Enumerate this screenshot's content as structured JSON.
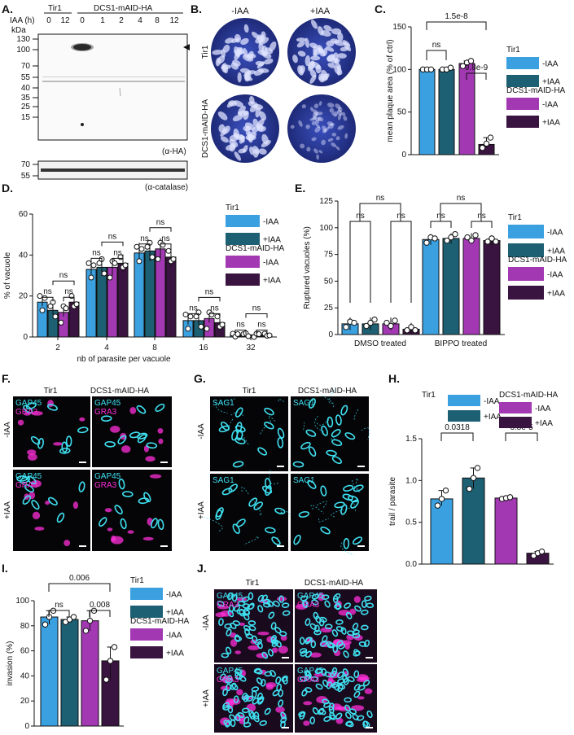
{
  "colors": {
    "c_lightblue": "#3aa0df",
    "c_teal": "#1d5f73",
    "c_magenta": "#a238b2",
    "c_dark": "#3a1440",
    "cyan": "#3fe0f0",
    "magenta_stain": "#ff2fd8",
    "plate_blue": "#2c3d9a"
  },
  "panel_letters": [
    "A.",
    "B.",
    "C.",
    "D.",
    "E.",
    "F.",
    "G.",
    "H.",
    "I.",
    "J."
  ],
  "legend": {
    "group1": "Tir1",
    "group2": "DCS1-mAID-HA",
    "minus": "-IAA",
    "plus": "+IAA"
  },
  "panelA": {
    "iaa_label": "IAA (h)",
    "kda": "kDa",
    "groups": [
      "Tir1",
      "DCS1-mAID-HA"
    ],
    "lanes": [
      "0",
      "12",
      "0",
      "1",
      "2",
      "4",
      "8",
      "12"
    ],
    "markers": [
      "130",
      "100",
      "70",
      "55",
      "40",
      "35",
      "25",
      "15"
    ],
    "markers2": [
      "70",
      "55"
    ],
    "blot1_label": "(α-HA)",
    "blot2_label": "(α-catalase)"
  },
  "panelB": {
    "cols": [
      "-IAA",
      "+IAA"
    ],
    "rows": [
      "Tir1",
      "DCS1-mAID-HA"
    ]
  },
  "chartC": {
    "type": "bar",
    "ylabel": "mean plaque area (% of ctrl)",
    "ylim": [
      0,
      150
    ],
    "yticks": [
      "0",
      "50",
      "100",
      "150"
    ],
    "values": [
      100,
      100,
      107,
      12
    ],
    "points": [
      [
        100,
        100,
        100
      ],
      [
        100,
        100,
        102
      ],
      [
        104,
        108,
        110
      ],
      [
        8,
        13,
        20
      ]
    ],
    "stats": [
      {
        "label": "ns"
      },
      {
        "label": "1.5e-8"
      },
      {
        "label": "9.8e-9"
      }
    ]
  },
  "chartD": {
    "type": "bar",
    "ylabel": "% of vacuole",
    "xlabel": "nb of parasite per vacuole",
    "ylim": [
      0,
      60
    ],
    "yticks": [
      "0",
      "20",
      "40",
      "60"
    ],
    "categories": [
      "2",
      "4",
      "8",
      "16",
      "32"
    ],
    "series": [
      {
        "name": "Tir1 -IAA",
        "values": [
          17,
          33,
          41,
          8,
          1
        ]
      },
      {
        "name": "Tir1 +IAA",
        "values": [
          13,
          34,
          42,
          8,
          1
        ]
      },
      {
        "name": "DCS1-mAID-HA -IAA",
        "values": [
          12,
          34,
          43,
          9,
          1
        ]
      },
      {
        "name": "DCS1-mAID-HA +IAA",
        "values": [
          17,
          36,
          39,
          7,
          1
        ]
      }
    ],
    "ns": "ns"
  },
  "chartE": {
    "type": "bar",
    "ylabel": "Ruptured vacuoles (%)",
    "ylim": [
      0,
      125
    ],
    "yticks": [
      "0",
      "25",
      "50",
      "75",
      "100",
      "125"
    ],
    "categories": [
      "DMSO treated",
      "BIPPO treated"
    ],
    "series": [
      {
        "name": "Tir1 -IAA",
        "values": [
          10,
          89
        ]
      },
      {
        "name": "Tir1 +IAA",
        "values": [
          10,
          90
        ]
      },
      {
        "name": "DCS1-mAID-HA -IAA",
        "values": [
          10,
          90
        ]
      },
      {
        "name": "DCS1-mAID-HA +IAA",
        "values": [
          5,
          88
        ]
      }
    ],
    "ns": "ns"
  },
  "panelF": {
    "cols": [
      "Tir1",
      "DCS1-mAID-HA"
    ],
    "rows": [
      "-IAA",
      "+IAA"
    ],
    "stain1": "GAP45",
    "stain2": "GRA3"
  },
  "panelG": {
    "cols": [
      "Tir1",
      "DCS1-mAID-HA"
    ],
    "rows": [
      "-IAA",
      "+IAA"
    ],
    "stain": "SAG1"
  },
  "chartH": {
    "type": "bar",
    "ylabel": "trail / parasite",
    "ylim": [
      0,
      1.5
    ],
    "yticks": [
      "0.0",
      "0.5",
      "1.0",
      "1.5"
    ],
    "values": [
      0.78,
      1.03,
      0.79,
      0.13
    ],
    "points": [
      [
        0.7,
        0.78,
        0.88
      ],
      [
        0.9,
        1.03,
        1.15
      ],
      [
        0.78,
        0.79,
        0.8
      ],
      [
        0.1,
        0.13,
        0.15
      ]
    ],
    "stats": [
      {
        "label": "0.0318"
      },
      {
        "label": "6.8e-5"
      }
    ]
  },
  "chartI": {
    "type": "bar",
    "ylabel": "invasion (%)",
    "ylim": [
      0,
      100
    ],
    "yticks": [
      "0",
      "20",
      "40",
      "60",
      "80",
      "100"
    ],
    "values": [
      87,
      85,
      84,
      52
    ],
    "points": [
      [
        81,
        87,
        92
      ],
      [
        83,
        85,
        87
      ],
      [
        76,
        84,
        92
      ],
      [
        37,
        52,
        63
      ]
    ],
    "stats": [
      {
        "label": "ns"
      },
      {
        "label": "0.006"
      },
      {
        "label": "0.008"
      }
    ]
  },
  "panelJ": {
    "cols": [
      "Tir1",
      "DCS1-mAID-HA"
    ],
    "rows": [
      "-IAA",
      "+IAA"
    ],
    "stain1": "GAP45",
    "stain2": "GRA3"
  }
}
